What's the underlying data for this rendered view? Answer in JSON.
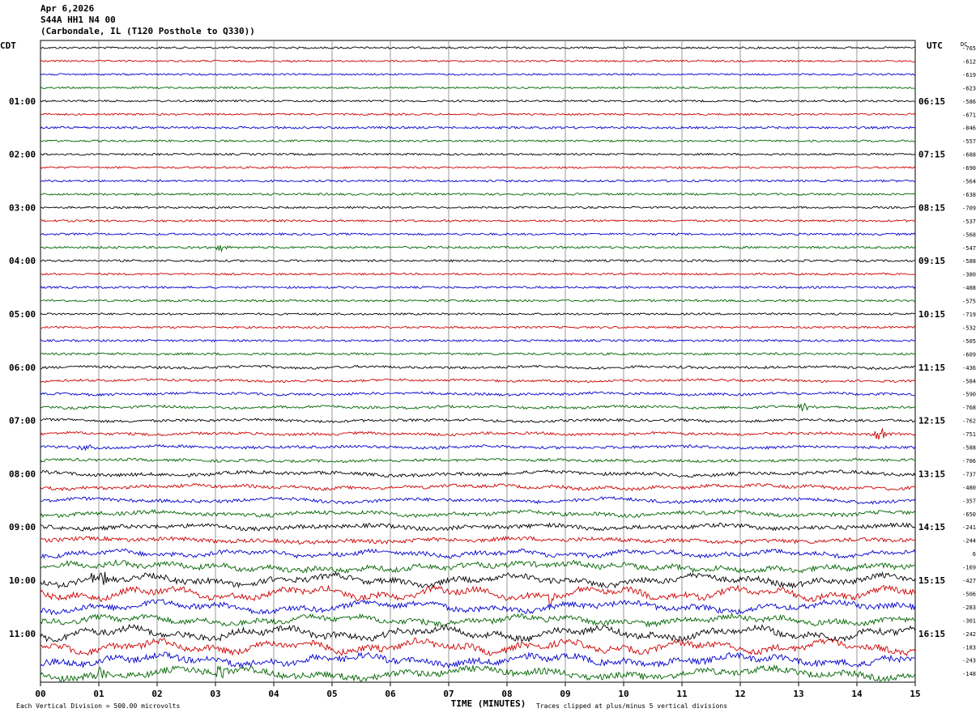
{
  "header": {
    "date": "Apr 6,2026",
    "station": "S44A HH1 N4 00",
    "location": "(Carbondale, IL (T120 Posthole to Q330))"
  },
  "axes": {
    "left_zone": "CDT",
    "right_zone": "UTC",
    "dc_label": "DC",
    "xlabel": "TIME (MINUTES)",
    "footer_left": "Each Vertical Division =  500.00 microvolts",
    "footer_right": "Traces clipped at plus/minus 5 vertical divisions"
  },
  "colors": {
    "trace_cycle": [
      "#000000",
      "#cc0000",
      "#0000cc",
      "#006400"
    ],
    "grid": "#808080"
  },
  "chart_data": {
    "type": "line",
    "title": "",
    "xlabel": "TIME (MINUTES)",
    "xlim": [
      0,
      15
    ],
    "x_ticks": [
      "00",
      "01",
      "02",
      "03",
      "04",
      "05",
      "06",
      "07",
      "08",
      "09",
      "10",
      "11",
      "12",
      "13",
      "14",
      "15"
    ],
    "left_hour_labels": [
      "01:00",
      "02:00",
      "03:00",
      "04:00",
      "05:00",
      "06:00",
      "07:00",
      "08:00",
      "09:00",
      "10:00",
      "11:00"
    ],
    "right_hour_labels": [
      "06:15",
      "07:15",
      "08:15",
      "09:15",
      "10:15",
      "11:15",
      "12:15",
      "13:15",
      "14:15",
      "15:15",
      "16:15"
    ],
    "hour_label_rows": [
      4,
      8,
      12,
      16,
      20,
      24,
      28,
      32,
      36,
      40,
      44
    ],
    "trace_count": 48,
    "dc_offsets": [
      -765,
      -612,
      -619,
      -623,
      -586,
      -671,
      -846,
      -557,
      -688,
      -690,
      -564,
      -638,
      -709,
      -537,
      -568,
      -547,
      -588,
      -380,
      -488,
      -575,
      -719,
      -532,
      -505,
      -609,
      -436,
      -584,
      -590,
      -768,
      -762,
      -751,
      -588,
      -706,
      -737,
      -480,
      -357,
      -650,
      -241,
      -244,
      6,
      -169,
      -427,
      -506,
      -283,
      -301,
      -242,
      -183,
      -243,
      -148
    ],
    "trace_amplitude": [
      1.2,
      1.1,
      1.1,
      1.1,
      1.2,
      1.2,
      1.4,
      1.2,
      1.2,
      1.2,
      1.3,
      1.3,
      1.2,
      1.3,
      1.3,
      1.4,
      1.3,
      1.2,
      1.3,
      1.3,
      1.2,
      1.3,
      1.3,
      1.4,
      1.5,
      1.4,
      1.5,
      1.5,
      1.6,
      1.6,
      1.7,
      1.6,
      2.0,
      1.9,
      2.0,
      2.3,
      2.5,
      2.4,
      2.6,
      3.2,
      3.4,
      3.6,
      3.4,
      3.2,
      3.8,
      3.8,
      3.8,
      3.8
    ],
    "trace_drift": [
      0,
      0,
      0,
      0,
      0,
      0,
      0,
      0,
      0,
      0,
      0,
      0,
      0,
      0,
      0,
      0,
      0,
      0,
      0,
      0,
      0,
      0,
      0,
      0,
      1,
      1,
      1,
      1,
      1,
      1,
      1,
      1,
      2,
      2,
      2,
      2,
      2,
      2,
      3,
      4,
      5,
      6,
      5,
      4,
      6,
      6,
      5,
      5
    ],
    "events": [
      {
        "trace": 15,
        "minute": 3.1,
        "amp": 6
      },
      {
        "trace": 27,
        "minute": 13.1,
        "amp": 6
      },
      {
        "trace": 29,
        "minute": 14.4,
        "amp": 8
      },
      {
        "trace": 30,
        "minute": 0.8,
        "amp": 4
      },
      {
        "trace": 40,
        "minute": 1.0,
        "amp": 12
      },
      {
        "trace": 41,
        "minute": 8.75,
        "amp": 11
      },
      {
        "trace": 47,
        "minute": 1.0,
        "amp": 6
      },
      {
        "trace": 47,
        "minute": 3.1,
        "amp": 8
      }
    ]
  }
}
